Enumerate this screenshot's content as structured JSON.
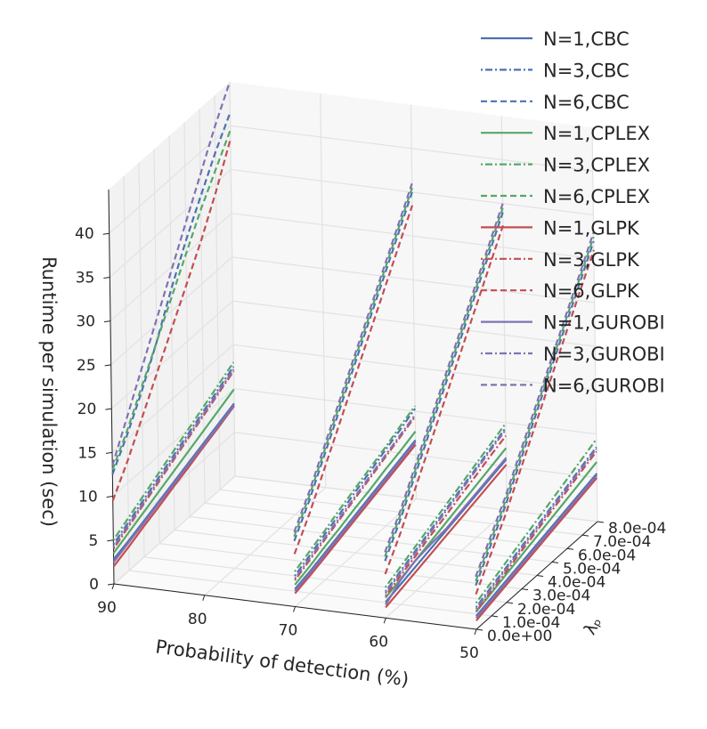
{
  "chart_data": {
    "type": "line",
    "projection": "3d",
    "xlabel": "Probability of detection (%)",
    "ylabel": "λₚ",
    "zlabel": "Runtime per simulation (sec)",
    "x_ticks": [
      "90",
      "80",
      "70",
      "60",
      "50"
    ],
    "y_ticks": [
      "0.0e+00",
      "1.0e-04",
      "2.0e-04",
      "3.0e-04",
      "4.0e-04",
      "5.0e-04",
      "6.0e-04",
      "7.0e-04",
      "8.0e-04"
    ],
    "z_ticks": [
      "0",
      "5",
      "10",
      "15",
      "20",
      "25",
      "30",
      "35",
      "40"
    ],
    "xlim": [
      90,
      50
    ],
    "ylim": [
      0,
      0.0008
    ],
    "zlim": [
      0,
      45
    ],
    "grid": true,
    "legend_position": "top-right",
    "pd_values": [
      90,
      70,
      60,
      50
    ],
    "lambda_values": [
      0,
      0.0001,
      0.0002,
      0.0003,
      0.0004,
      0.0005,
      0.0006,
      0.0007,
      0.0008
    ],
    "colors": {
      "CBC": "#4c72b0",
      "CPLEX": "#55a868",
      "GLPK": "#c44e52",
      "GUROBI": "#8172b2"
    },
    "series": [
      {
        "name": "N=1,CBC",
        "solver": "CBC",
        "style": "solid",
        "runtime": {
          "90": [
            2.8,
            3.4,
            4.1,
            4.8,
            5.5,
            6.2,
            6.9,
            7.6,
            8.3
          ],
          "70": [
            2.0,
            2.5,
            3.1,
            3.7,
            4.3,
            4.9,
            5.5,
            6.1,
            6.7
          ],
          "60": [
            1.8,
            2.3,
            2.8,
            3.3,
            3.8,
            4.3,
            4.8,
            5.3,
            5.8
          ],
          "50": [
            1.5,
            2.0,
            2.5,
            3.0,
            3.5,
            4.0,
            4.5,
            5.0,
            5.5
          ]
        }
      },
      {
        "name": "N=3,CBC",
        "solver": "CBC",
        "style": "dashdot",
        "runtime": {
          "90": [
            4.5,
            5.5,
            6.5,
            7.5,
            8.5,
            9.5,
            10.5,
            11.5,
            12.5
          ],
          "70": [
            3.5,
            4.3,
            5.2,
            6.0,
            6.9,
            7.7,
            8.6,
            9.4,
            10.3
          ],
          "60": [
            3.0,
            3.8,
            4.6,
            5.4,
            6.2,
            7.0,
            7.8,
            8.6,
            9.4
          ],
          "50": [
            2.5,
            3.3,
            4.0,
            4.8,
            5.5,
            6.3,
            7.0,
            7.8,
            8.5
          ]
        }
      },
      {
        "name": "N=6,CBC",
        "solver": "CBC",
        "style": "dashed",
        "runtime": {
          "90": [
            12.5,
            15.5,
            19,
            23,
            27.5,
            31.5,
            35,
            38.5,
            41.5
          ],
          "70": [
            7.5,
            10.5,
            14,
            17.5,
            21,
            24.5,
            28,
            31.5,
            35
          ],
          "60": [
            6.5,
            9.5,
            13,
            16.5,
            20,
            23.5,
            27,
            30.5,
            34
          ],
          "50": [
            5.0,
            8.0,
            11.0,
            14.5,
            18.0,
            21.5,
            25.0,
            28.5,
            32.0
          ]
        }
      },
      {
        "name": "N=1,CPLEX",
        "solver": "CPLEX",
        "style": "solid",
        "runtime": {
          "90": [
            3.5,
            4.3,
            5.1,
            5.9,
            6.7,
            7.5,
            8.3,
            9.1,
            9.9
          ],
          "70": [
            2.5,
            3.1,
            3.8,
            4.4,
            5.1,
            5.7,
            6.4,
            7.0,
            7.7
          ],
          "60": [
            2.3,
            2.9,
            3.5,
            4.1,
            4.7,
            5.3,
            5.9,
            6.5,
            7.1
          ],
          "50": [
            2.0,
            2.6,
            3.2,
            3.8,
            4.4,
            5.0,
            5.6,
            6.2,
            6.8
          ]
        }
      },
      {
        "name": "N=3,CPLEX",
        "solver": "CPLEX",
        "style": "dashdot",
        "runtime": {
          "90": [
            5.0,
            6.0,
            7.0,
            8.0,
            9.0,
            10.0,
            11.0,
            12.0,
            13.0
          ],
          "70": [
            4.0,
            4.8,
            5.6,
            6.5,
            7.3,
            8.1,
            8.9,
            9.8,
            10.6
          ],
          "60": [
            3.5,
            4.3,
            5.1,
            5.9,
            6.7,
            7.5,
            8.3,
            9.1,
            9.9
          ],
          "50": [
            3.0,
            3.8,
            4.6,
            5.4,
            6.2,
            7.0,
            7.8,
            8.6,
            9.4
          ]
        }
      },
      {
        "name": "N=6,CPLEX",
        "solver": "CPLEX",
        "style": "dashed",
        "runtime": {
          "90": [
            13.0,
            16.0,
            19.5,
            23.0,
            26.5,
            30.0,
            33.5,
            36.5,
            39.5
          ],
          "70": [
            8.0,
            11.0,
            14.5,
            18.0,
            21.5,
            25.0,
            28.5,
            32.0,
            35.5
          ],
          "60": [
            7.0,
            10.0,
            13.5,
            17.0,
            20.5,
            24.0,
            27.5,
            31.0,
            34.5
          ],
          "50": [
            5.5,
            8.5,
            11.5,
            15.0,
            18.5,
            22.0,
            25.5,
            29.0,
            32.5
          ]
        }
      },
      {
        "name": "N=1,GLPK",
        "solver": "GLPK",
        "style": "solid",
        "runtime": {
          "90": [
            2.0,
            2.7,
            3.5,
            4.2,
            5.0,
            5.7,
            6.5,
            7.2,
            8.0
          ],
          "70": [
            1.5,
            2.0,
            2.6,
            3.2,
            3.8,
            4.4,
            5.0,
            5.6,
            6.2
          ],
          "60": [
            1.2,
            1.7,
            2.2,
            2.7,
            3.2,
            3.7,
            4.2,
            4.7,
            5.2
          ],
          "50": [
            1.0,
            1.5,
            2.0,
            2.5,
            3.0,
            3.5,
            4.0,
            4.5,
            5.0
          ]
        }
      },
      {
        "name": "N=3,GLPK",
        "solver": "GLPK",
        "style": "dashdot",
        "runtime": {
          "90": [
            4.0,
            5.0,
            6.0,
            7.0,
            8.0,
            9.0,
            10.0,
            11.0,
            12.0
          ],
          "70": [
            3.0,
            3.8,
            4.6,
            5.4,
            6.2,
            7.0,
            7.8,
            8.6,
            9.4
          ],
          "60": [
            2.5,
            3.3,
            4.0,
            4.8,
            5.5,
            6.3,
            7.0,
            7.8,
            8.5
          ],
          "50": [
            2.0,
            2.8,
            3.5,
            4.3,
            5.0,
            5.8,
            6.5,
            7.3,
            8.0
          ]
        }
      },
      {
        "name": "N=6,GLPK",
        "solver": "GLPK",
        "style": "dashed",
        "runtime": {
          "90": [
            9.5,
            12.5,
            16.0,
            19.5,
            23.0,
            26.5,
            30.0,
            34.0,
            38.5
          ],
          "70": [
            6.0,
            9.0,
            12.5,
            16.0,
            19.5,
            23.0,
            26.5,
            30.0,
            33.5
          ],
          "60": [
            5.0,
            8.0,
            11.5,
            15.0,
            18.5,
            22.0,
            25.5,
            29.0,
            32.5
          ],
          "50": [
            4.0,
            7.0,
            10.0,
            13.5,
            17.0,
            20.5,
            24.0,
            27.5,
            31.0
          ]
        }
      },
      {
        "name": "N=1,GUROBI",
        "solver": "GUROBI",
        "style": "solid",
        "runtime": {
          "90": [
            2.5,
            3.2,
            3.9,
            4.6,
            5.3,
            6.0,
            6.7,
            7.4,
            8.1
          ],
          "70": [
            1.8,
            2.3,
            2.9,
            3.5,
            4.1,
            4.7,
            5.3,
            5.9,
            6.5
          ],
          "60": [
            1.5,
            2.8,
            3.5,
            3.8,
            4.0,
            4.5,
            5.0,
            5.5,
            6.0
          ],
          "50": [
            1.3,
            1.8,
            2.3,
            2.8,
            3.3,
            3.8,
            4.3,
            4.8,
            5.3
          ]
        }
      },
      {
        "name": "N=3,GUROBI",
        "solver": "GUROBI",
        "style": "dashdot",
        "runtime": {
          "90": [
            4.2,
            5.2,
            6.2,
            7.2,
            8.2,
            9.2,
            10.2,
            11.2,
            12.2
          ],
          "70": [
            3.2,
            4.0,
            4.8,
            5.6,
            6.4,
            7.2,
            8.0,
            8.8,
            9.6
          ],
          "60": [
            2.8,
            3.6,
            4.4,
            5.2,
            6.0,
            6.8,
            7.6,
            8.4,
            9.2
          ],
          "50": [
            2.3,
            3.1,
            3.8,
            4.6,
            5.3,
            6.1,
            6.8,
            7.6,
            8.3
          ]
        }
      },
      {
        "name": "N=6,GUROBI",
        "solver": "GUROBI",
        "style": "dashed",
        "runtime": {
          "90": [
            13.5,
            17.5,
            21.5,
            25.5,
            29.5,
            33.5,
            37.5,
            41.5,
            45.0
          ],
          "70": [
            8.5,
            11.5,
            15.0,
            18.5,
            22.0,
            25.5,
            29.0,
            32.5,
            36.0
          ],
          "60": [
            7.5,
            10.5,
            14.0,
            17.5,
            21.0,
            24.5,
            28.0,
            31.5,
            35.0
          ],
          "50": [
            6.0,
            9.0,
            12.0,
            15.5,
            19.0,
            22.5,
            26.0,
            29.5,
            33.0
          ]
        }
      }
    ]
  }
}
